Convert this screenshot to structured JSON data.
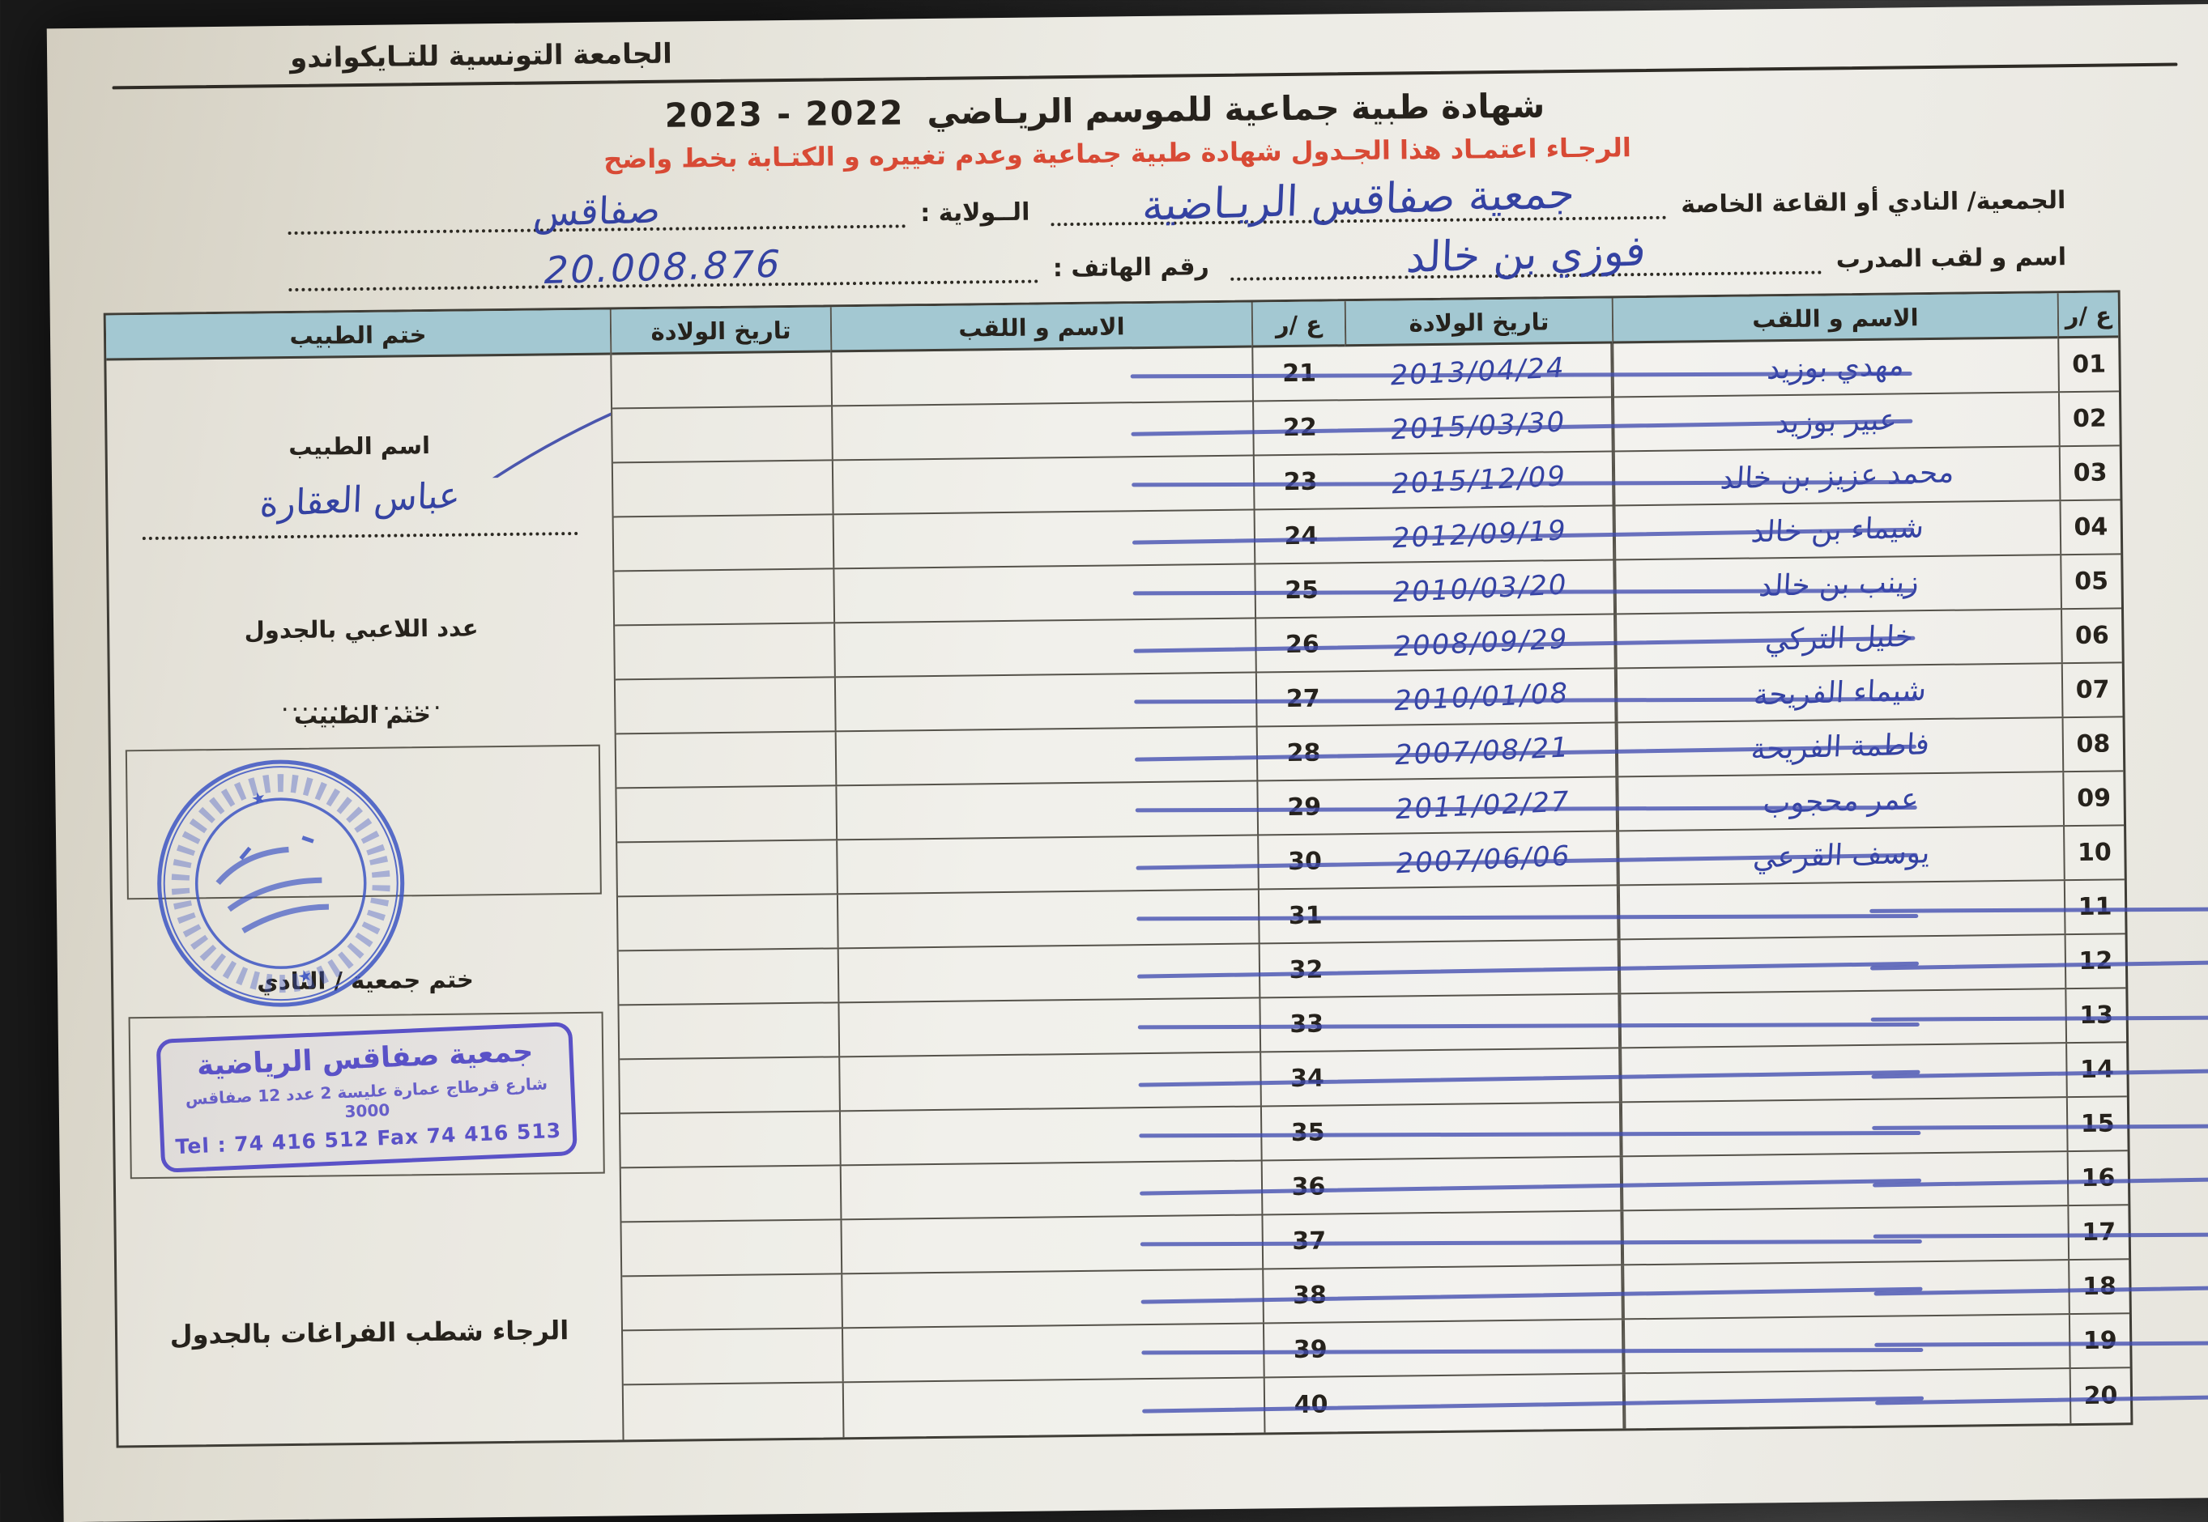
{
  "colors": {
    "paper": "#ecebe4",
    "header_fill": "#a3c8d2",
    "ink_blue": "#3442a2",
    "stamp_violet": "#5a52c7",
    "note_red": "#d84a35"
  },
  "page": {
    "federation": "الجامعة التونسية للتـايكواندو",
    "title": "شهادة طبية جماعية  للموسم الريـاضي",
    "season": "2023 - 2022",
    "instruction": "الرجـاء اعتمـاد هذا الجـدول  شهادة طبية جماعية وعدم تغييره و الكتـابة بخط واضح"
  },
  "form": {
    "club_label": "الجمعية/ النادي أو القاعة الخاصة",
    "club_value": "جمعية صفاقس الريـاضية",
    "wilaya_label": "الــولاية :",
    "wilaya_value": "صفاقس",
    "coach_label": "اسم و لقب المدرب",
    "coach_value": "فوزي بن خالد",
    "phone_label": "رقم الهاتف :",
    "phone_value": "20.008.876"
  },
  "table": {
    "headers": {
      "serial": "ع /ر",
      "name": "الاسم و اللقب",
      "dob": "تاريخ الولادة",
      "stamp": "ختم الطبيب"
    },
    "rows": [
      {
        "num1": "01",
        "name1": "مهدي بوزيد",
        "dob1": "2013/04/24",
        "num2": "21",
        "name2": "",
        "dob2": "",
        "struck_right": false
      },
      {
        "num1": "02",
        "name1": "عبير بوزيد",
        "dob1": "2015/03/30",
        "num2": "22",
        "name2": "",
        "dob2": "",
        "struck_right": false
      },
      {
        "num1": "03",
        "name1": "محمد عزيز بن خالد",
        "dob1": "2015/12/09",
        "num2": "23",
        "name2": "",
        "dob2": "",
        "struck_right": false
      },
      {
        "num1": "04",
        "name1": "شيماء بن خالد",
        "dob1": "2012/09/19",
        "num2": "24",
        "name2": "",
        "dob2": "",
        "struck_right": false
      },
      {
        "num1": "05",
        "name1": "زينب بن خالد",
        "dob1": "2010/03/20",
        "num2": "25",
        "name2": "",
        "dob2": "",
        "struck_right": false
      },
      {
        "num1": "06",
        "name1": "خليل التركي",
        "dob1": "2008/09/29",
        "num2": "26",
        "name2": "",
        "dob2": "",
        "struck_right": false
      },
      {
        "num1": "07",
        "name1": "شيماء الفريحة",
        "dob1": "2010/01/08",
        "num2": "27",
        "name2": "",
        "dob2": "",
        "struck_right": false
      },
      {
        "num1": "08",
        "name1": "فاطمة الفريحة",
        "dob1": "2007/08/21",
        "num2": "28",
        "name2": "",
        "dob2": "",
        "struck_right": false
      },
      {
        "num1": "09",
        "name1": "عمر محجوب",
        "dob1": "2011/02/27",
        "num2": "29",
        "name2": "",
        "dob2": "",
        "struck_right": false
      },
      {
        "num1": "10",
        "name1": "يوسف القرعي",
        "dob1": "2007/06/06",
        "num2": "30",
        "name2": "",
        "dob2": "",
        "struck_right": false
      },
      {
        "num1": "11",
        "name1": "",
        "dob1": "",
        "num2": "31",
        "name2": "",
        "dob2": "",
        "struck_right": true
      },
      {
        "num1": "12",
        "name1": "",
        "dob1": "",
        "num2": "32",
        "name2": "",
        "dob2": "",
        "struck_right": true
      },
      {
        "num1": "13",
        "name1": "",
        "dob1": "",
        "num2": "33",
        "name2": "",
        "dob2": "",
        "struck_right": true
      },
      {
        "num1": "14",
        "name1": "",
        "dob1": "",
        "num2": "34",
        "name2": "",
        "dob2": "",
        "struck_right": true
      },
      {
        "num1": "15",
        "name1": "",
        "dob1": "",
        "num2": "35",
        "name2": "",
        "dob2": "",
        "struck_right": true
      },
      {
        "num1": "16",
        "name1": "",
        "dob1": "",
        "num2": "36",
        "name2": "",
        "dob2": "",
        "struck_right": true
      },
      {
        "num1": "17",
        "name1": "",
        "dob1": "",
        "num2": "37",
        "name2": "",
        "dob2": "",
        "struck_right": true
      },
      {
        "num1": "18",
        "name1": "",
        "dob1": "",
        "num2": "38",
        "name2": "",
        "dob2": "",
        "struck_right": true
      },
      {
        "num1": "19",
        "name1": "",
        "dob1": "",
        "num2": "39",
        "name2": "",
        "dob2": "",
        "struck_right": true
      },
      {
        "num1": "20",
        "name1": "",
        "dob1": "",
        "num2": "40",
        "name2": "",
        "dob2": "",
        "struck_right": true
      }
    ]
  },
  "left_panel": {
    "doctor_name_label": "اسم الطبيب",
    "doctor_name_value": "عباس العقارة",
    "players_count_label": "عدد اللاعبي بالجدول",
    "players_count_dots": "................",
    "doctor_stamp_label": "ختم الطبيب",
    "club_stamp_label": "ختم جمعية / النادي",
    "club_stamp": {
      "line1": "جمعية صفاقس الرياضية",
      "line2": "شارع قرطاج عمارة عليسة 2 عدد 12 صفاقس 3000",
      "line3": "Tel : 74 416 512  Fax  74 416 513"
    },
    "footer_note": "الرجاء شطب  الفراغات بالجدول"
  }
}
